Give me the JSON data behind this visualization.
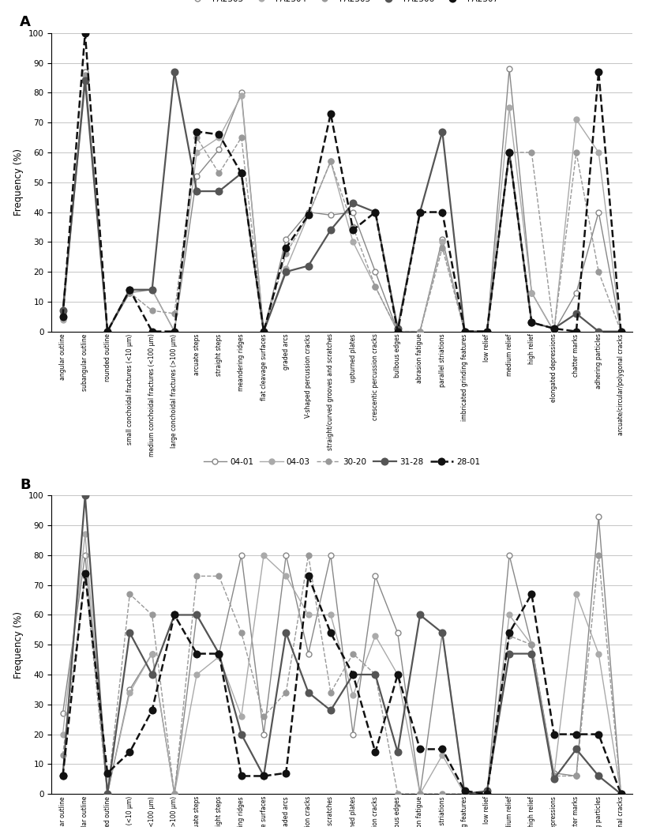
{
  "panel_A": {
    "series": {
      "PA2503": {
        "values": [
          5,
          87,
          0,
          13,
          14,
          0,
          52,
          61,
          80,
          0,
          31,
          40,
          39,
          40,
          20,
          0,
          0,
          31,
          0,
          0,
          88,
          13,
          0,
          13,
          40,
          0
        ],
        "color": "#888888",
        "linestyle": "-",
        "marker": "o",
        "markersize": 5,
        "linewidth": 1.0,
        "markerfacecolor": "#ffffff",
        "markeredgecolor": "#888888",
        "markeredgewidth": 1.0
      },
      "PA2504": {
        "values": [
          4,
          85,
          0,
          14,
          14,
          0,
          60,
          65,
          79,
          0,
          21,
          39,
          57,
          30,
          15,
          0,
          0,
          30,
          0,
          0,
          75,
          13,
          0,
          71,
          60,
          0
        ],
        "color": "#aaaaaa",
        "linestyle": "-",
        "marker": "o",
        "markersize": 5,
        "linewidth": 1.0,
        "markerfacecolor": "#aaaaaa",
        "markeredgecolor": "#aaaaaa",
        "markeredgewidth": 1.0
      },
      "PA2505": {
        "values": [
          6,
          86,
          0,
          13,
          7,
          6,
          65,
          53,
          65,
          0,
          26,
          39,
          57,
          35,
          15,
          0,
          0,
          28,
          0,
          0,
          60,
          60,
          0,
          60,
          20,
          0
        ],
        "color": "#999999",
        "linestyle": "--",
        "marker": "o",
        "markersize": 5,
        "linewidth": 1.0,
        "markerfacecolor": "#999999",
        "markeredgecolor": "#999999",
        "markeredgewidth": 1.0
      },
      "PA2506": {
        "values": [
          7,
          84,
          0,
          14,
          14,
          87,
          47,
          47,
          53,
          0,
          20,
          22,
          34,
          43,
          40,
          1,
          40,
          67,
          0,
          0,
          60,
          3,
          1,
          6,
          0,
          0
        ],
        "color": "#555555",
        "linestyle": "-",
        "marker": "o",
        "markersize": 6,
        "linewidth": 1.6,
        "markerfacecolor": "#555555",
        "markeredgecolor": "#555555",
        "markeredgewidth": 1.2
      },
      "PA2507": {
        "values": [
          5,
          100,
          0,
          14,
          0,
          0,
          67,
          66,
          53,
          0,
          28,
          39,
          73,
          34,
          40,
          0,
          40,
          40,
          0,
          0,
          60,
          3,
          1,
          0,
          87,
          0
        ],
        "color": "#111111",
        "linestyle": "--",
        "marker": "o",
        "markersize": 6,
        "linewidth": 1.8,
        "markerfacecolor": "#111111",
        "markeredgecolor": "#111111",
        "markeredgewidth": 1.2
      }
    }
  },
  "panel_B": {
    "series": {
      "04-01": {
        "values": [
          27,
          80,
          0,
          35,
          47,
          0,
          60,
          47,
          80,
          20,
          80,
          47,
          80,
          20,
          73,
          54,
          0,
          54,
          0,
          0,
          80,
          50,
          7,
          6,
          93,
          0
        ],
        "color": "#888888",
        "linestyle": "-",
        "marker": "o",
        "markersize": 5,
        "linewidth": 1.0,
        "markerfacecolor": "#ffffff",
        "markeredgecolor": "#888888",
        "markeredgewidth": 1.0
      },
      "04-03": {
        "values": [
          20,
          87,
          0,
          34,
          47,
          0,
          40,
          46,
          26,
          80,
          73,
          60,
          60,
          33,
          53,
          40,
          0,
          13,
          0,
          0,
          60,
          50,
          6,
          67,
          47,
          0
        ],
        "color": "#aaaaaa",
        "linestyle": "-",
        "marker": "o",
        "markersize": 5,
        "linewidth": 1.0,
        "markerfacecolor": "#aaaaaa",
        "markeredgecolor": "#aaaaaa",
        "markeredgewidth": 1.0
      },
      "30-20": {
        "values": [
          13,
          73,
          0,
          67,
          60,
          0,
          73,
          73,
          54,
          26,
          34,
          80,
          34,
          47,
          40,
          0,
          0,
          0,
          0,
          0,
          53,
          50,
          6,
          6,
          80,
          0
        ],
        "color": "#999999",
        "linestyle": "--",
        "marker": "o",
        "markersize": 5,
        "linewidth": 1.0,
        "markerfacecolor": "#999999",
        "markeredgecolor": "#999999",
        "markeredgewidth": 1.0
      },
      "31-28": {
        "values": [
          6,
          100,
          0,
          54,
          40,
          60,
          60,
          47,
          20,
          6,
          54,
          34,
          28,
          40,
          40,
          14,
          60,
          54,
          0,
          1,
          47,
          47,
          5,
          15,
          6,
          0
        ],
        "color": "#555555",
        "linestyle": "-",
        "marker": "o",
        "markersize": 6,
        "linewidth": 1.6,
        "markerfacecolor": "#555555",
        "markeredgecolor": "#555555",
        "markeredgewidth": 1.2
      },
      "28-01": {
        "values": [
          6,
          74,
          7,
          14,
          28,
          60,
          47,
          47,
          6,
          6,
          7,
          73,
          54,
          40,
          14,
          40,
          15,
          15,
          1,
          0,
          54,
          67,
          20,
          20,
          20,
          0
        ],
        "color": "#111111",
        "linestyle": "--",
        "marker": "o",
        "markersize": 6,
        "linewidth": 1.8,
        "markerfacecolor": "#111111",
        "markeredgecolor": "#111111",
        "markeredgewidth": 1.2
      }
    }
  },
  "xlabels": [
    "angular outline",
    "subangular outline",
    "rounded outline",
    "small conchoidal fractures (<10 μm)",
    "medium conchoidal fractures (<100 μm)",
    "large conchoidal fractures (>100 μm)",
    "arcuate steps",
    "straight steps",
    "meandering ridges",
    "flat cleavage surfaces",
    "graded arcs",
    "V-shaped percussion cracks",
    "straight/curved grooves and scratches",
    "upturned plates",
    "crescentic percussion cracks",
    "bulbous edges",
    "abrasion fatigue",
    "parallel striations",
    "imbricated grinding features",
    "low relief",
    "medium relief",
    "high relief",
    "elongated depressions",
    "chatter marks",
    "adhering particles",
    "arcuate/circular/polygonal cracks"
  ],
  "ylabel": "Frequency (%)",
  "ylim": [
    0,
    100
  ],
  "yticks": [
    0,
    10,
    20,
    30,
    40,
    50,
    60,
    70,
    80,
    90,
    100
  ],
  "background_color": "#ffffff",
  "grid_color": "#bbbbbb"
}
